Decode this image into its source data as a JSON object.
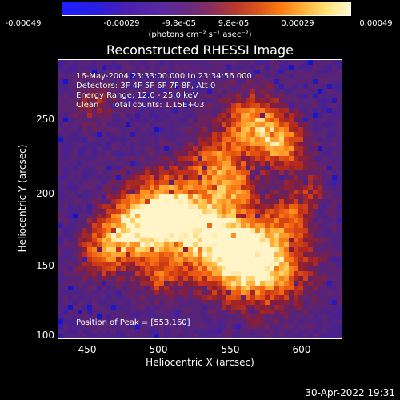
{
  "colorbar": {
    "ticks": [
      "-0.00049",
      "-0.00029",
      "-9.8e-05",
      "9.8e-05",
      "0.00029",
      "0.00049"
    ],
    "units": "(photons cm⁻² s⁻¹ asec⁻²)"
  },
  "title": "Reconstructed RHESSI Image",
  "info": {
    "time": "16-May-2004 23:33:00.000 to 23:34:56.000",
    "detectors": "Detectors: 3F 4F 5F 6F 7F 8F, Att 0",
    "energy": "Energy Range: 12.0 - 25.0 keV",
    "clean": "Clean     Total counts: 1.15E+03"
  },
  "peak": "Position of Peak = [553,160]",
  "axes": {
    "xlabel": "Heliocentric X (arcsec)",
    "ylabel": "Heliocentric Y (arcsec)",
    "xticks": [
      "450",
      "500",
      "550",
      "600"
    ],
    "yticks": [
      "250",
      "200",
      "150",
      "100"
    ],
    "xlim": [
      432,
      624
    ],
    "ylim": [
      100,
      285
    ]
  },
  "datestamp": "30-Apr-2022 19:31"
}
